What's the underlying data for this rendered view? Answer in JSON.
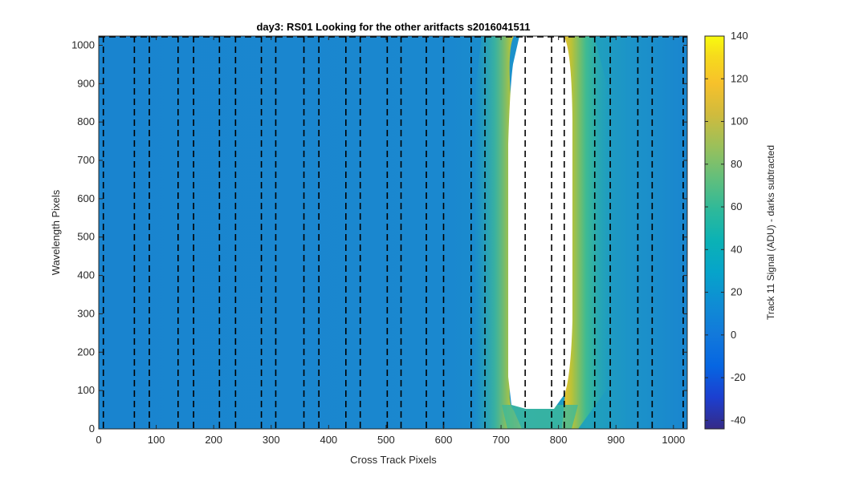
{
  "chart_data": {
    "type": "heatmap",
    "title": "day3: RS01  Looking for the other aritfacts  s2016041511",
    "xlabel": "Cross Track Pixels",
    "ylabel": "Wavelength Pixels",
    "xlim": [
      0,
      1024
    ],
    "ylim": [
      0,
      1024
    ],
    "xticks": [
      0,
      100,
      200,
      300,
      400,
      500,
      600,
      700,
      800,
      900,
      1000
    ],
    "yticks": [
      0,
      100,
      200,
      300,
      400,
      500,
      600,
      700,
      800,
      900,
      1000
    ],
    "colorbar": {
      "label": "Track 11 Signal (ADU) - darks subtracted",
      "range": [
        -44,
        140
      ],
      "ticks": [
        140,
        120,
        100,
        80,
        60,
        40,
        20,
        0,
        -20,
        -40
      ],
      "colormap": "parula"
    },
    "background_value": 15,
    "saturated_region": {
      "x_range": [
        738,
        808
      ],
      "y_range": [
        60,
        1024
      ],
      "value": "above 140"
    },
    "dashed_boundaries_x": [
      8,
      62,
      88,
      138,
      165,
      210,
      238,
      283,
      308,
      357,
      383,
      430,
      455,
      502,
      526,
      570,
      600,
      648,
      672,
      742,
      788,
      810,
      863,
      890,
      938,
      963,
      1017
    ],
    "grid": false,
    "colors": {
      "background_blue": "#1a86cf",
      "saturation_fill": "#ffffff",
      "axis": "#262626"
    }
  }
}
